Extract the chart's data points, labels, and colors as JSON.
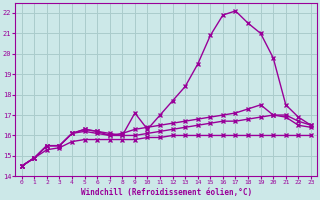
{
  "xlabel": "Windchill (Refroidissement éolien,°C)",
  "background_color": "#cce8e8",
  "grid_color": "#aacccc",
  "line_color": "#990099",
  "xlim": [
    -0.5,
    23.5
  ],
  "ylim": [
    14,
    22.5
  ],
  "yticks": [
    14,
    15,
    16,
    17,
    18,
    19,
    20,
    21,
    22
  ],
  "xticks": [
    0,
    1,
    2,
    3,
    4,
    5,
    6,
    7,
    8,
    9,
    10,
    11,
    12,
    13,
    14,
    15,
    16,
    17,
    18,
    19,
    20,
    21,
    22,
    23
  ],
  "series": [
    {
      "x": [
        0,
        1,
        2,
        3,
        4,
        5,
        6,
        7,
        8,
        9,
        10,
        11,
        12,
        13,
        14,
        15,
        16,
        17,
        18,
        19,
        20,
        21,
        22,
        23
      ],
      "y": [
        14.5,
        14.9,
        15.5,
        15.5,
        16.1,
        16.3,
        16.2,
        16.1,
        16.0,
        17.1,
        16.3,
        17.0,
        17.7,
        18.4,
        19.5,
        20.9,
        21.9,
        22.1,
        21.5,
        21.0,
        19.8,
        17.5,
        16.9,
        16.5
      ],
      "marker": "x",
      "markersize": 3,
      "linewidth": 1.0
    },
    {
      "x": [
        0,
        1,
        2,
        3,
        4,
        5,
        6,
        7,
        8,
        9,
        10,
        11,
        12,
        13,
        14,
        15,
        16,
        17,
        18,
        19,
        20,
        21,
        22,
        23
      ],
      "y": [
        14.5,
        14.9,
        15.5,
        15.5,
        16.1,
        16.3,
        16.2,
        16.0,
        16.1,
        16.3,
        16.4,
        16.5,
        16.6,
        16.7,
        16.8,
        16.9,
        17.0,
        17.1,
        17.3,
        17.5,
        17.0,
        16.9,
        16.5,
        16.4
      ],
      "marker": "x",
      "markersize": 3,
      "linewidth": 1.0
    },
    {
      "x": [
        0,
        1,
        2,
        3,
        4,
        5,
        6,
        7,
        8,
        9,
        10,
        11,
        12,
        13,
        14,
        15,
        16,
        17,
        18,
        19,
        20,
        21,
        22,
        23
      ],
      "y": [
        14.5,
        14.9,
        15.5,
        15.5,
        16.1,
        16.2,
        16.1,
        16.0,
        16.0,
        16.0,
        16.1,
        16.2,
        16.3,
        16.4,
        16.5,
        16.6,
        16.7,
        16.7,
        16.8,
        16.9,
        17.0,
        17.0,
        16.7,
        16.5
      ],
      "marker": "x",
      "markersize": 3,
      "linewidth": 1.0
    },
    {
      "x": [
        0,
        1,
        2,
        3,
        4,
        5,
        6,
        7,
        8,
        9,
        10,
        11,
        12,
        13,
        14,
        15,
        16,
        17,
        18,
        19,
        20,
        21,
        22,
        23
      ],
      "y": [
        14.5,
        14.9,
        15.3,
        15.4,
        15.7,
        15.8,
        15.8,
        15.8,
        15.8,
        15.8,
        15.9,
        15.9,
        16.0,
        16.0,
        16.0,
        16.0,
        16.0,
        16.0,
        16.0,
        16.0,
        16.0,
        16.0,
        16.0,
        16.0
      ],
      "marker": "x",
      "markersize": 3,
      "linewidth": 1.0
    }
  ]
}
